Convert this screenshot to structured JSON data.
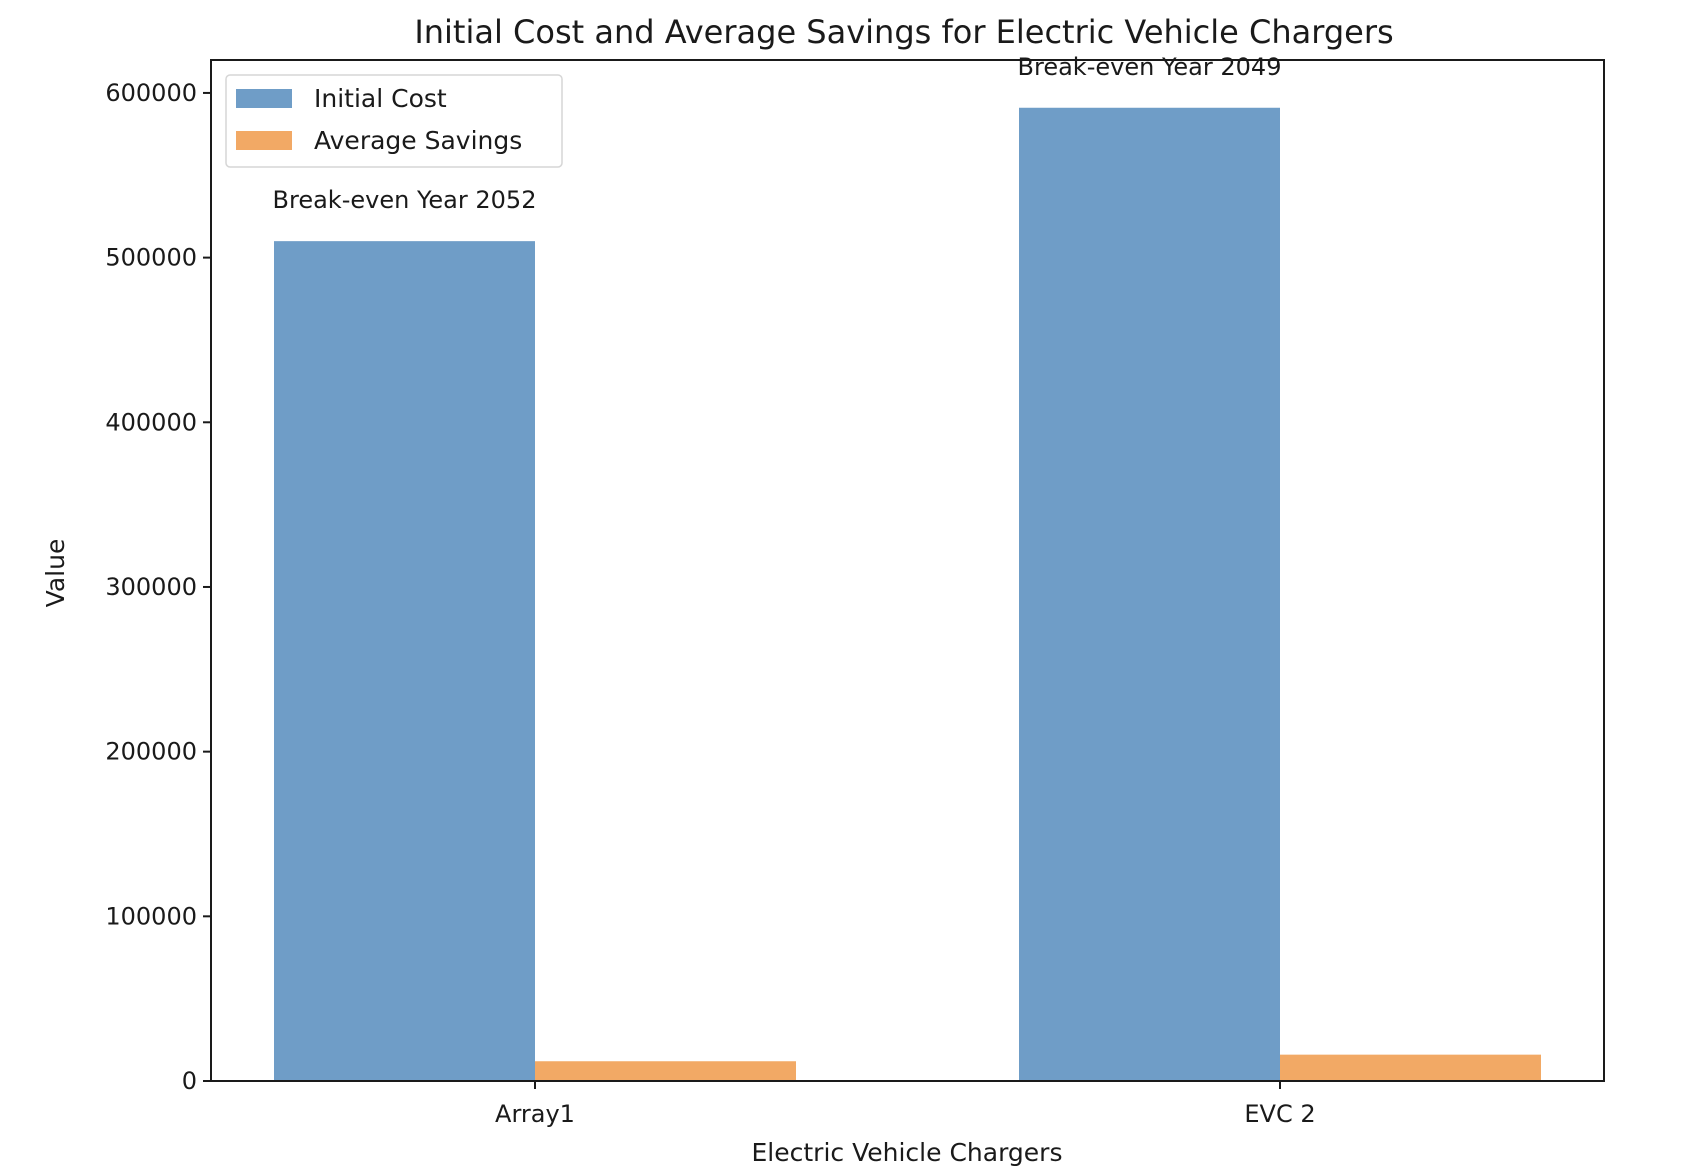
{
  "chart_data": {
    "type": "bar",
    "title": "Initial Cost and Average Savings for Electric Vehicle Chargers",
    "xlabel": "Electric Vehicle Chargers",
    "ylabel": "Value",
    "categories": [
      "Array1",
      "EVC 2"
    ],
    "series": [
      {
        "name": "Initial Cost",
        "values": [
          510000,
          591000
        ],
        "color": "#6f9dc7"
      },
      {
        "name": "Average Savings",
        "values": [
          12000,
          16000
        ],
        "color": "#f2a965"
      }
    ],
    "annotations": [
      "Break-even Year 2052",
      "Break-even Year 2049"
    ],
    "ylim": [
      0,
      620000
    ],
    "yticks": [
      0,
      100000,
      200000,
      300000,
      400000,
      500000,
      600000
    ],
    "ytick_labels": [
      "0",
      "100000",
      "200000",
      "300000",
      "400000",
      "500000",
      "600000"
    ],
    "grid": false,
    "legend_position": "upper-left"
  }
}
